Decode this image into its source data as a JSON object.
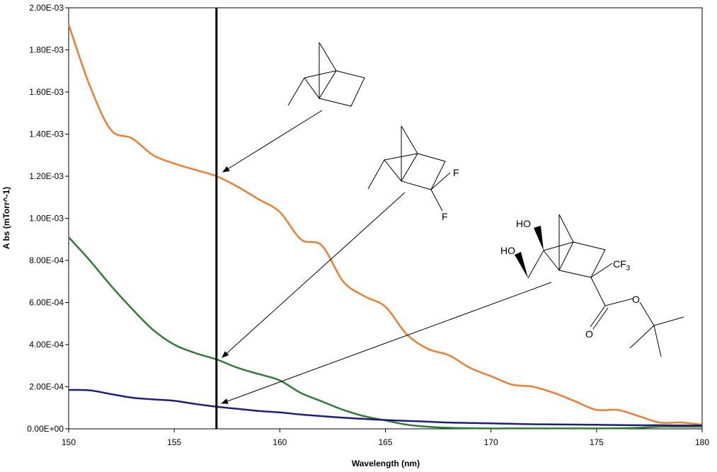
{
  "chart_data": {
    "type": "line",
    "xlabel": "Wavelength (nm)",
    "ylabel": "A bs (mTorr^-1)",
    "xlim": [
      150,
      180
    ],
    "ylim": [
      0,
      0.002
    ],
    "xticks": [
      150,
      155,
      160,
      165,
      170,
      175,
      180
    ],
    "yticks": [
      0,
      0.0002,
      0.0004,
      0.0006,
      0.0008,
      0.001,
      0.0012,
      0.0014,
      0.0016,
      0.0018,
      0.002
    ],
    "xtick_labels": [
      "150",
      "155",
      "160",
      "165",
      "170",
      "175",
      "180"
    ],
    "ytick_labels": [
      "0.00E+00",
      "2.00E-04",
      "4.00E-04",
      "6.00E-04",
      "8.00E-04",
      "1.00E-03",
      "1.20E-03",
      "1.40E-03",
      "1.60E-03",
      "1.80E-03",
      "2.00E-03"
    ],
    "grid": false,
    "marker_line": {
      "x": 157,
      "color": "#000000"
    },
    "series": [
      {
        "color": "#ED7D31",
        "x": [
          150,
          151,
          152,
          153,
          154,
          155,
          156,
          157,
          158,
          159,
          160,
          161,
          162,
          163,
          164,
          165,
          166,
          167,
          168,
          169,
          170,
          171,
          172,
          173,
          174,
          175,
          176,
          177,
          178,
          179,
          180
        ],
        "y": [
          0.00192,
          0.00163,
          0.00142,
          0.00138,
          0.0013,
          0.00126,
          0.00123,
          0.0012,
          0.00115,
          0.00109,
          0.00103,
          0.0009,
          0.00087,
          0.0007,
          0.00063,
          0.00058,
          0.00045,
          0.00038,
          0.00035,
          0.00029,
          0.00025,
          0.00021,
          0.0002,
          0.00017,
          0.00013,
          9e-05,
          9e-05,
          6e-05,
          3e-05,
          3e-05,
          2e-05
        ]
      },
      {
        "color": "#2E7D32",
        "x": [
          150,
          151,
          152,
          153,
          154,
          155,
          156,
          157,
          158,
          159,
          160,
          161,
          162,
          163,
          164,
          165,
          166,
          167,
          168,
          169,
          170,
          171,
          172,
          173,
          174,
          175,
          176,
          177,
          178,
          179,
          180
        ],
        "y": [
          0.00091,
          0.0008,
          0.00068,
          0.00057,
          0.00047,
          0.0004,
          0.00036,
          0.00033,
          0.00029,
          0.00026,
          0.00023,
          0.00017,
          0.00013,
          9e-05,
          6e-05,
          4e-05,
          2e-05,
          1e-05,
          5e-06,
          3e-06,
          2e-06,
          2e-06,
          2e-06,
          2e-06,
          2e-06,
          2e-06,
          3e-06,
          5e-06,
          1e-05,
          1e-05,
          1e-05
        ]
      },
      {
        "color": "#1F1F7A",
        "x": [
          150,
          151,
          152,
          153,
          154,
          155,
          156,
          157,
          158,
          159,
          160,
          161,
          162,
          163,
          164,
          165,
          166,
          167,
          168,
          169,
          170,
          171,
          172,
          173,
          174,
          175,
          176,
          177,
          178,
          179,
          180
        ],
        "y": [
          0.000185,
          0.000183,
          0.000165,
          0.000148,
          0.00014,
          0.000133,
          0.000118,
          0.000105,
          9.5e-05,
          8.5e-05,
          7.8e-05,
          6.8e-05,
          6e-05,
          5.3e-05,
          4.7e-05,
          4.2e-05,
          3.8e-05,
          3.4e-05,
          3e-05,
          2.8e-05,
          2.6e-05,
          2.4e-05,
          2.2e-05,
          2.1e-05,
          2e-05,
          1.9e-05,
          1.8e-05,
          1.7e-05,
          1.7e-05,
          1.6e-05,
          1.6e-05
        ]
      }
    ],
    "annotations": [
      {
        "label": "norbornane structure",
        "target": [
          157.2,
          0.00121
        ]
      },
      {
        "label": "difluoronorbornane structure",
        "atoms": [
          "F",
          "F"
        ],
        "target": [
          157.2,
          0.000335
        ]
      },
      {
        "label": "diol tert-butyl ester structure",
        "atoms": [
          "HO",
          "HO",
          "CF3",
          "O",
          "O"
        ],
        "target": [
          157.2,
          0.000105
        ]
      }
    ]
  }
}
